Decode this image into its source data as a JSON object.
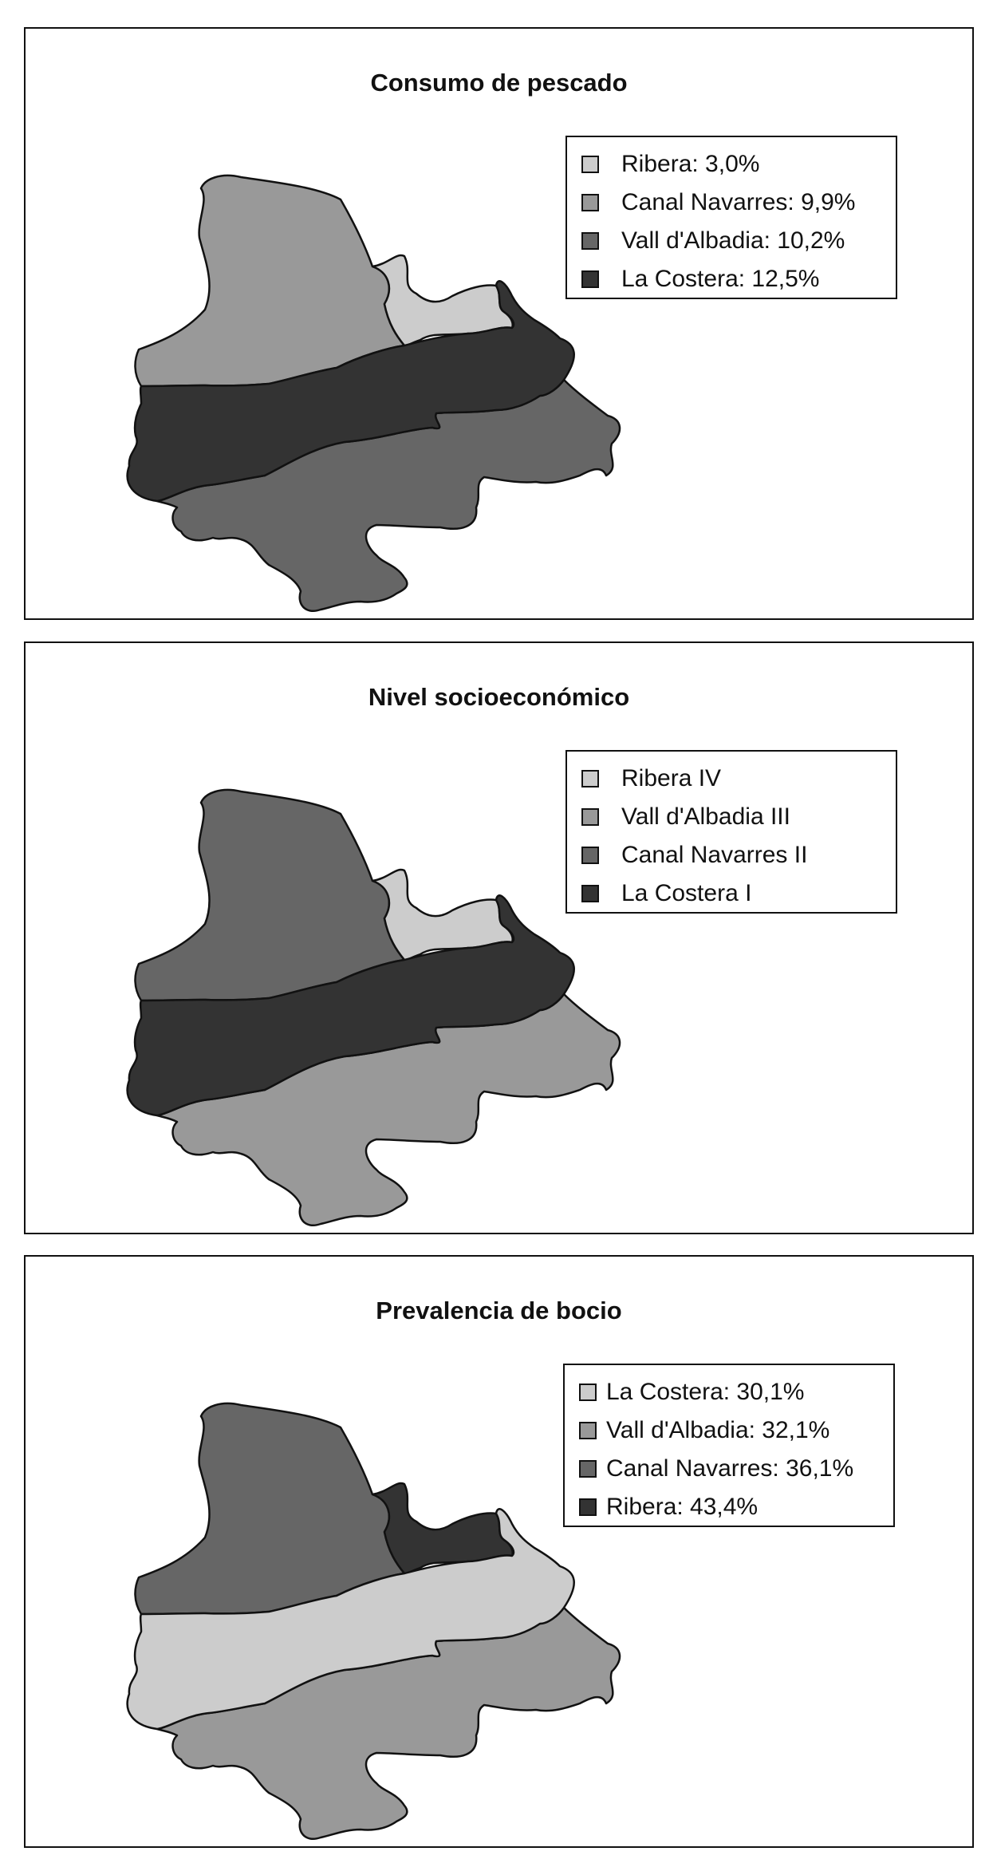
{
  "colors": {
    "light": "#cccccc",
    "medium": "#999999",
    "dark": "#666666",
    "darkest": "#333333",
    "outline": "#111111"
  },
  "maps": [
    {
      "title": "Consumo de pescado",
      "legend": [
        {
          "label": "Ribera: 3,0%",
          "color": "#cccccc"
        },
        {
          "label": "Canal Navarres: 9,9%",
          "color": "#999999"
        },
        {
          "label": "Vall d'Albadia: 10,2%",
          "color": "#666666"
        },
        {
          "label": "La Costera: 12,5%",
          "color": "#333333"
        }
      ],
      "regions": {
        "Ribera": "#cccccc",
        "Canal Navarres": "#999999",
        "Vall d'Albadia": "#666666",
        "La Costera": "#333333"
      }
    },
    {
      "title": "Nivel socioeconómico",
      "legend": [
        {
          "label": "Ribera IV",
          "color": "#cccccc"
        },
        {
          "label": "Vall d'Albadia III",
          "color": "#999999"
        },
        {
          "label": "Canal Navarres II",
          "color": "#666666"
        },
        {
          "label": "La Costera I",
          "color": "#333333"
        }
      ],
      "regions": {
        "Ribera": "#cccccc",
        "Canal Navarres": "#666666",
        "Vall d'Albadia": "#999999",
        "La Costera": "#333333"
      }
    },
    {
      "title": "Prevalencia de bocio",
      "legend": [
        {
          "label": "La Costera: 30,1%",
          "color": "#cccccc"
        },
        {
          "label": "Vall d'Albadia: 32,1%",
          "color": "#999999"
        },
        {
          "label": "Canal Navarres: 36,1%",
          "color": "#666666"
        },
        {
          "label": "Ribera: 43,4%",
          "color": "#333333"
        }
      ],
      "regions": {
        "Ribera": "#333333",
        "Canal Navarres": "#666666",
        "Vall d'Albadia": "#999999",
        "La Costera": "#cccccc"
      }
    }
  ]
}
